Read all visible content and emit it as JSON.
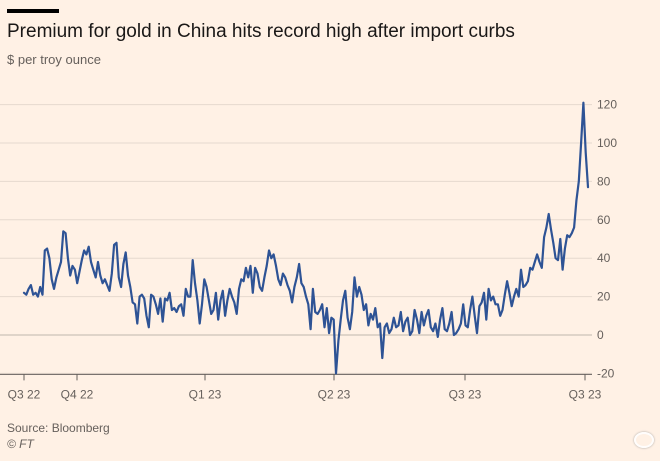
{
  "chart_data": {
    "type": "line",
    "title": "Premium for gold in China hits record high after import curbs",
    "subtitle": "$ per troy ounce",
    "source": "Source: Bloomberg",
    "credit": "© FT",
    "x_tick_labels": [
      "Q3 22",
      "Q4 22",
      "Q1 23",
      "Q2 23",
      "Q3 23",
      "Q3 23"
    ],
    "y_ticks": [
      -20,
      0,
      20,
      40,
      60,
      80,
      100,
      120
    ],
    "ylim": [
      -20,
      122
    ],
    "grid": true,
    "line_color": "#2e5395",
    "series": [
      {
        "values": [
          22,
          21,
          24,
          26,
          21,
          22,
          20,
          25,
          21,
          44,
          45,
          40,
          29,
          24,
          30,
          34,
          38,
          54,
          53,
          40,
          31,
          36,
          34,
          27,
          33,
          39,
          44,
          42,
          46,
          38,
          34,
          30,
          38,
          31,
          27,
          29,
          26,
          23,
          32,
          47,
          48,
          30,
          25,
          37,
          43,
          31,
          25,
          17,
          16,
          6,
          20,
          21,
          19,
          10,
          4,
          21,
          20,
          16,
          11,
          19,
          7,
          19,
          18,
          22,
          13,
          14,
          12,
          15,
          16,
          10,
          24,
          20,
          20,
          39,
          27,
          18,
          6,
          16,
          29,
          25,
          18,
          11,
          13,
          22,
          8,
          18,
          23,
          10,
          18,
          24,
          20,
          17,
          11,
          24,
          29,
          28,
          35,
          30,
          36,
          22,
          35,
          32,
          25,
          23,
          30,
          36,
          44,
          40,
          42,
          36,
          29,
          26,
          32,
          30,
          26,
          23,
          17,
          25,
          30,
          37,
          27,
          25,
          20,
          16,
          3,
          24,
          12,
          11,
          13,
          16,
          4,
          14,
          1,
          9,
          8,
          -20,
          -3,
          8,
          18,
          23,
          9,
          3,
          12,
          30,
          20,
          25,
          21,
          13,
          16,
          5,
          11,
          8,
          14,
          4,
          6,
          -12,
          4,
          6,
          1,
          3,
          9,
          4,
          5,
          12,
          2,
          7,
          9,
          0,
          2,
          13,
          8,
          1,
          12,
          5,
          10,
          13,
          4,
          2,
          6,
          -1,
          8,
          14,
          3,
          2,
          6,
          12,
          0,
          1,
          3,
          6,
          16,
          5,
          4,
          13,
          20,
          10,
          1,
          15,
          17,
          22,
          8,
          24,
          18,
          20,
          16,
          16,
          10,
          13,
          21,
          28,
          22,
          15,
          20,
          24,
          20,
          34,
          25,
          26,
          28,
          35,
          34,
          38,
          42,
          38,
          35,
          51,
          56,
          63,
          55,
          48,
          40,
          39,
          50,
          34,
          45,
          52,
          51,
          53,
          56,
          70,
          80,
          100,
          121,
          95,
          77
        ]
      }
    ]
  }
}
